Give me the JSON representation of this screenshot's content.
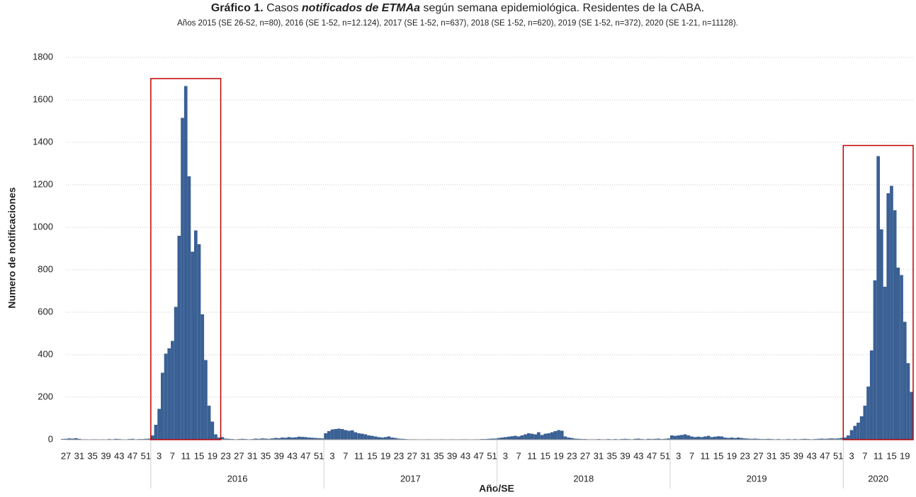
{
  "chart_data": {
    "type": "bar",
    "title": [
      "Gráfico 1.",
      "Casos",
      "notificados de ETMAa",
      "según semana epidemiológica. Residentes de la CABA."
    ],
    "subtitle": "Años 2015 (SE 26-52, n=80), 2016 (SE 1-52, n=12.124), 2017 (SE 1-52, n=637), 2018 (SE 1-52, n=620), 2019 (SE 1-52, n=372), 2020 (SE 1-21, n=11128).",
    "y_label": "Numero de notificaciones",
    "x_label": "Año/SE",
    "color": "#3a6094",
    "grid": true,
    "ylim": [
      0,
      1800
    ],
    "yticks": [
      0,
      200,
      400,
      600,
      800,
      1000,
      1200,
      1400,
      1600,
      1800
    ],
    "groups": [
      {
        "weeks": 27
      },
      {
        "label": "2016",
        "weeks": 52
      },
      {
        "label": "2017",
        "weeks": 52
      },
      {
        "label": "2018",
        "weeks": 52
      },
      {
        "label": "2019",
        "weeks": 52
      },
      {
        "label": "2020",
        "weeks": 21
      }
    ],
    "highlights": [
      {
        "from": 27,
        "to": 47,
        "top": 1700,
        "color": "#c00000"
      },
      {
        "from": 235,
        "to": 255,
        "top": 1385,
        "color": "#c00000"
      }
    ],
    "categories": [
      null,
      "27",
      null,
      null,
      null,
      "31",
      null,
      null,
      null,
      "35",
      null,
      null,
      null,
      "39",
      null,
      null,
      null,
      "43",
      null,
      null,
      null,
      "47",
      null,
      null,
      null,
      "51",
      null,
      null,
      null,
      "3",
      null,
      null,
      null,
      "7",
      null,
      null,
      null,
      "11",
      null,
      null,
      null,
      "15",
      null,
      null,
      null,
      "19",
      null,
      null,
      null,
      "23",
      null,
      null,
      null,
      "27",
      null,
      null,
      null,
      "31",
      null,
      null,
      null,
      "35",
      null,
      null,
      null,
      "39",
      null,
      null,
      null,
      "43",
      null,
      null,
      null,
      "47",
      null,
      null,
      null,
      "51",
      null,
      null,
      null,
      "3",
      null,
      null,
      null,
      "7",
      null,
      null,
      null,
      "11",
      null,
      null,
      null,
      "15",
      null,
      null,
      null,
      "19",
      null,
      null,
      null,
      "23",
      null,
      null,
      null,
      "27",
      null,
      null,
      null,
      "31",
      null,
      null,
      null,
      "35",
      null,
      null,
      null,
      "39",
      null,
      null,
      null,
      "43",
      null,
      null,
      null,
      "47",
      null,
      null,
      null,
      "51",
      null,
      null,
      null,
      "3",
      null,
      null,
      null,
      "7",
      null,
      null,
      null,
      "11",
      null,
      null,
      null,
      "15",
      null,
      null,
      null,
      "19",
      null,
      null,
      null,
      "23",
      null,
      null,
      null,
      "27",
      null,
      null,
      null,
      "31",
      null,
      null,
      null,
      "35",
      null,
      null,
      null,
      "39",
      null,
      null,
      null,
      "43",
      null,
      null,
      null,
      "47",
      null,
      null,
      null,
      "51",
      null,
      null,
      null,
      "3",
      null,
      null,
      null,
      "7",
      null,
      null,
      null,
      "11",
      null,
      null,
      null,
      "15",
      null,
      null,
      null,
      "19",
      null,
      null,
      null,
      "23",
      null,
      null,
      null,
      "27",
      null,
      null,
      null,
      "31",
      null,
      null,
      null,
      "35",
      null,
      null,
      null,
      "39",
      null,
      null,
      null,
      "43",
      null,
      null,
      null,
      "47",
      null,
      null,
      null,
      "51",
      null,
      null,
      null,
      "3",
      null,
      null,
      null,
      "7",
      null,
      null,
      null,
      "11",
      null,
      null,
      null,
      "15",
      null,
      null,
      null,
      "19",
      null,
      null
    ],
    "values": [
      3,
      4,
      6,
      5,
      7,
      4,
      2,
      2,
      1,
      2,
      2,
      1,
      2,
      1,
      3,
      2,
      4,
      3,
      2,
      1,
      3,
      4,
      2,
      3,
      3,
      4,
      5,
      20,
      70,
      145,
      315,
      405,
      430,
      465,
      625,
      960,
      1515,
      1665,
      1240,
      885,
      985,
      920,
      590,
      375,
      160,
      85,
      25,
      10,
      12,
      5,
      4,
      3,
      2,
      3,
      4,
      3,
      2,
      3,
      5,
      4,
      6,
      5,
      4,
      6,
      8,
      7,
      10,
      9,
      12,
      10,
      11,
      14,
      13,
      12,
      10,
      9,
      8,
      7,
      6,
      30,
      40,
      48,
      50,
      52,
      50,
      45,
      42,
      44,
      35,
      30,
      28,
      25,
      20,
      18,
      15,
      12,
      10,
      12,
      15,
      10,
      8,
      5,
      4,
      3,
      2,
      2,
      2,
      1,
      1,
      1,
      2,
      1,
      1,
      1,
      2,
      1,
      1,
      2,
      1,
      1,
      2,
      2,
      1,
      1,
      2,
      2,
      3,
      3,
      4,
      5,
      5,
      8,
      10,
      12,
      14,
      16,
      18,
      15,
      20,
      25,
      30,
      28,
      25,
      35,
      22,
      28,
      30,
      35,
      40,
      45,
      42,
      15,
      10,
      8,
      5,
      4,
      3,
      3,
      2,
      2,
      2,
      3,
      2,
      2,
      3,
      2,
      3,
      2,
      3,
      4,
      3,
      2,
      4,
      5,
      3,
      2,
      4,
      3,
      4,
      5,
      3,
      4,
      6,
      20,
      18,
      20,
      22,
      25,
      20,
      15,
      12,
      14,
      12,
      15,
      18,
      12,
      14,
      16,
      15,
      10,
      8,
      10,
      8,
      10,
      8,
      6,
      5,
      4,
      5,
      4,
      3,
      3,
      4,
      3,
      2,
      3,
      2,
      2,
      3,
      2,
      3,
      2,
      3,
      4,
      3,
      2,
      3,
      4,
      5,
      4,
      5,
      6,
      5,
      6,
      8,
      10,
      20,
      45,
      65,
      80,
      110,
      160,
      250,
      420,
      750,
      1335,
      990,
      720,
      1160,
      1195,
      1080,
      810,
      775,
      555,
      360,
      225
    ]
  }
}
